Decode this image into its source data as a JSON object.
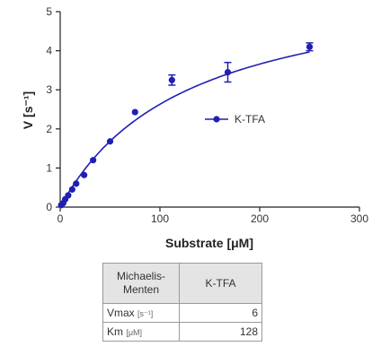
{
  "chart_data": {
    "type": "scatter",
    "xlabel": "Substrate [μM]",
    "ylabel": "V [s⁻¹]",
    "xlim": [
      0,
      300
    ],
    "ylim": [
      0,
      5
    ],
    "xticks": [
      "0",
      "100",
      "200",
      "300"
    ],
    "yticks": [
      "0",
      "1",
      "2",
      "3",
      "4",
      "5"
    ],
    "grid": false,
    "legend_position": "right-middle",
    "series": [
      {
        "name": "K-TFA",
        "color": "#1f1fb4",
        "points": [
          {
            "x": 1,
            "y": 0.05
          },
          {
            "x": 3,
            "y": 0.1
          },
          {
            "x": 5,
            "y": 0.2
          },
          {
            "x": 8,
            "y": 0.3
          },
          {
            "x": 12,
            "y": 0.45
          },
          {
            "x": 16,
            "y": 0.6
          },
          {
            "x": 24,
            "y": 0.82
          },
          {
            "x": 33,
            "y": 1.2
          },
          {
            "x": 50,
            "y": 1.68
          },
          {
            "x": 75,
            "y": 2.43
          },
          {
            "x": 112,
            "y": 3.25,
            "err": 0.13
          },
          {
            "x": 168,
            "y": 3.45,
            "err": 0.25
          },
          {
            "x": 250,
            "y": 4.1,
            "err": 0.1
          }
        ],
        "fit": {
          "model": "Michaelis-Menten",
          "vmax": 6,
          "km": 128,
          "x_range": [
            0,
            250
          ]
        }
      }
    ]
  },
  "table": {
    "header_left": [
      "Michaelis-",
      "Menten"
    ],
    "header_right": "K-TFA",
    "rows": [
      {
        "label": "Vmax",
        "unit": "[s⁻¹]",
        "value": "6"
      },
      {
        "label": "Km",
        "unit": "[μM]",
        "value": "128"
      }
    ]
  }
}
